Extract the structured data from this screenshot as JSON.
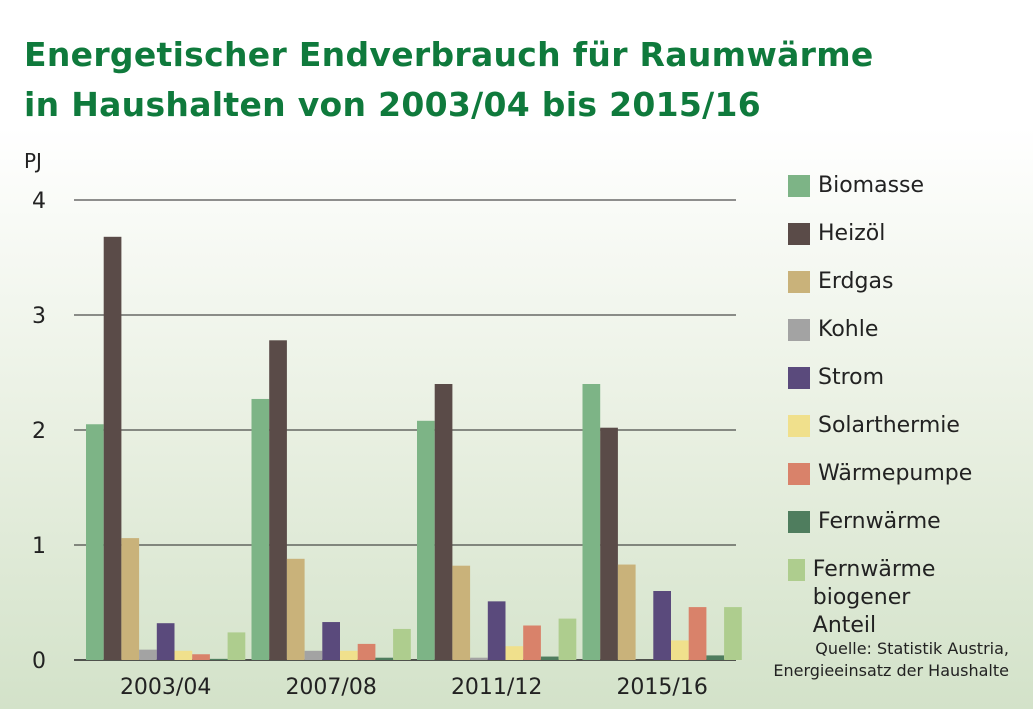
{
  "title_lines": [
    "Energetischer Endverbrauch für Raumwärme",
    "in Haushalten von 2003/04 bis 2015/16"
  ],
  "source_lines": [
    "Quelle: Statistik Austria,",
    "Energieeinsatz der Haushalte"
  ],
  "chart_data": {
    "type": "bar",
    "title": "Energetischer Endverbrauch für Raumwärme in Haushalten von 2003/04 bis 2015/16",
    "ylabel": "PJ",
    "xlabel": "",
    "ylim": [
      0,
      4
    ],
    "yticks": [
      0,
      1,
      2,
      3,
      4
    ],
    "grid": true,
    "legend_position": "right",
    "categories": [
      "2003/04",
      "2007/08",
      "2011/12",
      "2015/16"
    ],
    "series": [
      {
        "name": "Biomasse",
        "color": "#7db486",
        "values": [
          2.05,
          2.27,
          2.08,
          2.4
        ]
      },
      {
        "name": "Heizöl",
        "color": "#5a4b48",
        "values": [
          3.68,
          2.78,
          2.4,
          2.02
        ]
      },
      {
        "name": "Erdgas",
        "color": "#c9b27a",
        "values": [
          1.06,
          0.88,
          0.82,
          0.83
        ]
      },
      {
        "name": "Kohle",
        "color": "#a3a3a3",
        "values": [
          0.09,
          0.08,
          0.02,
          0.0
        ]
      },
      {
        "name": "Strom",
        "color": "#5a4a7c",
        "values": [
          0.32,
          0.33,
          0.51,
          0.6
        ]
      },
      {
        "name": "Solarthermie",
        "color": "#f0e08c",
        "values": [
          0.08,
          0.08,
          0.12,
          0.17
        ]
      },
      {
        "name": "Wärmepumpe",
        "color": "#d9826a",
        "values": [
          0.05,
          0.14,
          0.3,
          0.46
        ]
      },
      {
        "name": "Fernwärme",
        "color": "#4f7d5e",
        "values": [
          0.01,
          0.02,
          0.03,
          0.04
        ]
      },
      {
        "name": "Fernwärme\nbiogener Anteil",
        "color": "#aecd8e",
        "values": [
          0.24,
          0.27,
          0.36,
          0.46
        ]
      }
    ]
  }
}
